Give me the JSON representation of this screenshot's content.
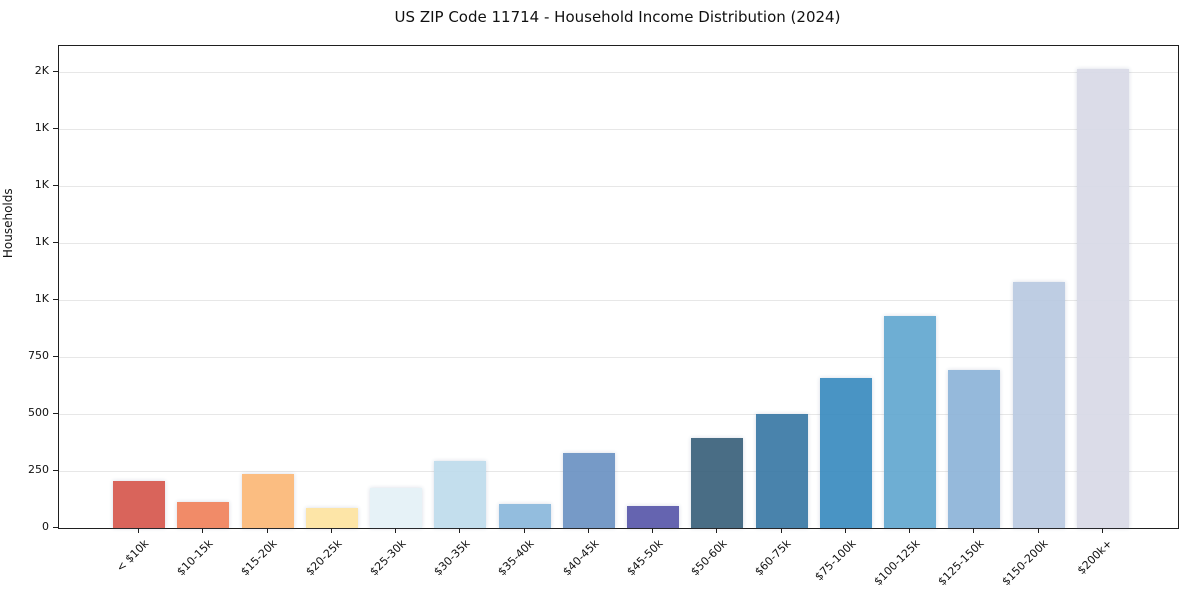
{
  "chart_data": {
    "type": "bar",
    "title": "US ZIP Code 11714 - Household Income Distribution (2024)",
    "xlabel": "",
    "ylabel": "Households",
    "ylim": [
      0,
      2116
    ],
    "grid": true,
    "legend": false,
    "categories": [
      "< $10k",
      "$10-15k",
      "$15-20k",
      "$20-25k",
      "$25-30k",
      "$30-35k",
      "$35-40k",
      "$40-45k",
      "$45-50k",
      "$50-60k",
      "$60-75k",
      "$75-100k",
      "$100-125k",
      "$125-150k",
      "$150-200k",
      "$200k+"
    ],
    "values": [
      205,
      115,
      235,
      90,
      175,
      295,
      105,
      330,
      95,
      395,
      500,
      660,
      930,
      695,
      1080,
      2015
    ],
    "bar_colors": [
      "#d6574e",
      "#f0825c",
      "#fbb877",
      "#fde3a0",
      "#e4f1f7",
      "#bedcec",
      "#8ab8dc",
      "#6b92c3",
      "#5957aa",
      "#3a617b",
      "#3a79a5",
      "#3a8bbf",
      "#62a8d0",
      "#8db4d8",
      "#b9c9e1",
      "#d8dae7"
    ],
    "yticks": [
      {
        "value": 0,
        "label": "0"
      },
      {
        "value": 250,
        "label": "250"
      },
      {
        "value": 500,
        "label": "500"
      },
      {
        "value": 750,
        "label": "750"
      },
      {
        "value": 1000,
        "label": "1K"
      },
      {
        "value": 1250,
        "label": "1K"
      },
      {
        "value": 1500,
        "label": "1K"
      },
      {
        "value": 1750,
        "label": "1K"
      },
      {
        "value": 2000,
        "label": "2K"
      }
    ],
    "axis_color": "#1f1f1f",
    "gridline_color": "#e7e7e7",
    "background_color": "#ffffff"
  }
}
